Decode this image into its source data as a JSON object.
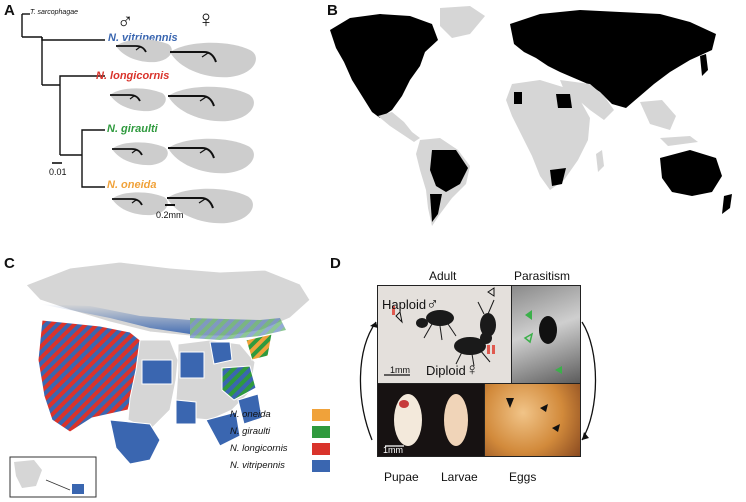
{
  "panels": {
    "a": {
      "letter": "A"
    },
    "b": {
      "letter": "B"
    },
    "c": {
      "letter": "C"
    },
    "d": {
      "letter": "D"
    }
  },
  "tree": {
    "outgroup": "T. sarcophagae",
    "species": [
      {
        "name": "N. vitripennis",
        "color": "#3a66b0"
      },
      {
        "name": "N. longicornis",
        "color": "#d9332b"
      },
      {
        "name": "N. giraulti",
        "color": "#2f9a3e"
      },
      {
        "name": "N. oneida",
        "color": "#f0a23a"
      }
    ],
    "scale_tree": "0.01",
    "scale_wing": "0.2mm",
    "male_symbol": "♂",
    "female_symbol": "♀"
  },
  "legend": [
    {
      "label": "N. oneida",
      "color": "#f0a23a"
    },
    {
      "label": "N. giraulti",
      "color": "#2f9a3e"
    },
    {
      "label": "N. longicornis",
      "color": "#d9332b"
    },
    {
      "label": "N. vitripennis",
      "color": "#3a66b0"
    }
  ],
  "lifecycle": {
    "adult": "Adult",
    "parasitism": "Parasitism",
    "haploid": "Haploid",
    "diploid": "Diploid",
    "scale": "1mm",
    "pupae": "Pupae",
    "larvae": "Larvae",
    "eggs": "Eggs"
  }
}
